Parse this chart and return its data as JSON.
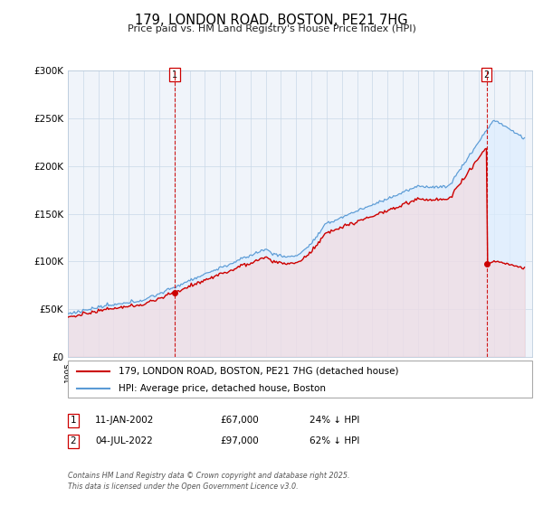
{
  "title": "179, LONDON ROAD, BOSTON, PE21 7HG",
  "subtitle": "Price paid vs. HM Land Registry's House Price Index (HPI)",
  "legend1": "179, LONDON ROAD, BOSTON, PE21 7HG (detached house)",
  "legend2": "HPI: Average price, detached house, Boston",
  "annotation1_label": "1",
  "annotation1_date": "11-JAN-2002",
  "annotation1_price": "£67,000",
  "annotation1_hpi": "24% ↓ HPI",
  "annotation2_label": "2",
  "annotation2_date": "04-JUL-2022",
  "annotation2_price": "£97,000",
  "annotation2_hpi": "62% ↓ HPI",
  "footer": "Contains HM Land Registry data © Crown copyright and database right 2025.\nThis data is licensed under the Open Government Licence v3.0.",
  "hpi_color": "#5b9bd5",
  "hpi_fill": "#ddeeff",
  "price_color": "#cc0000",
  "bg_color": "#f0f4fa",
  "sale1_year": 2002.03,
  "sale1_price": 67000,
  "sale2_year": 2022.5,
  "sale2_price": 97000,
  "ylim_min": 0,
  "ylim_max": 300000,
  "start_year": 1995,
  "end_year": 2025
}
